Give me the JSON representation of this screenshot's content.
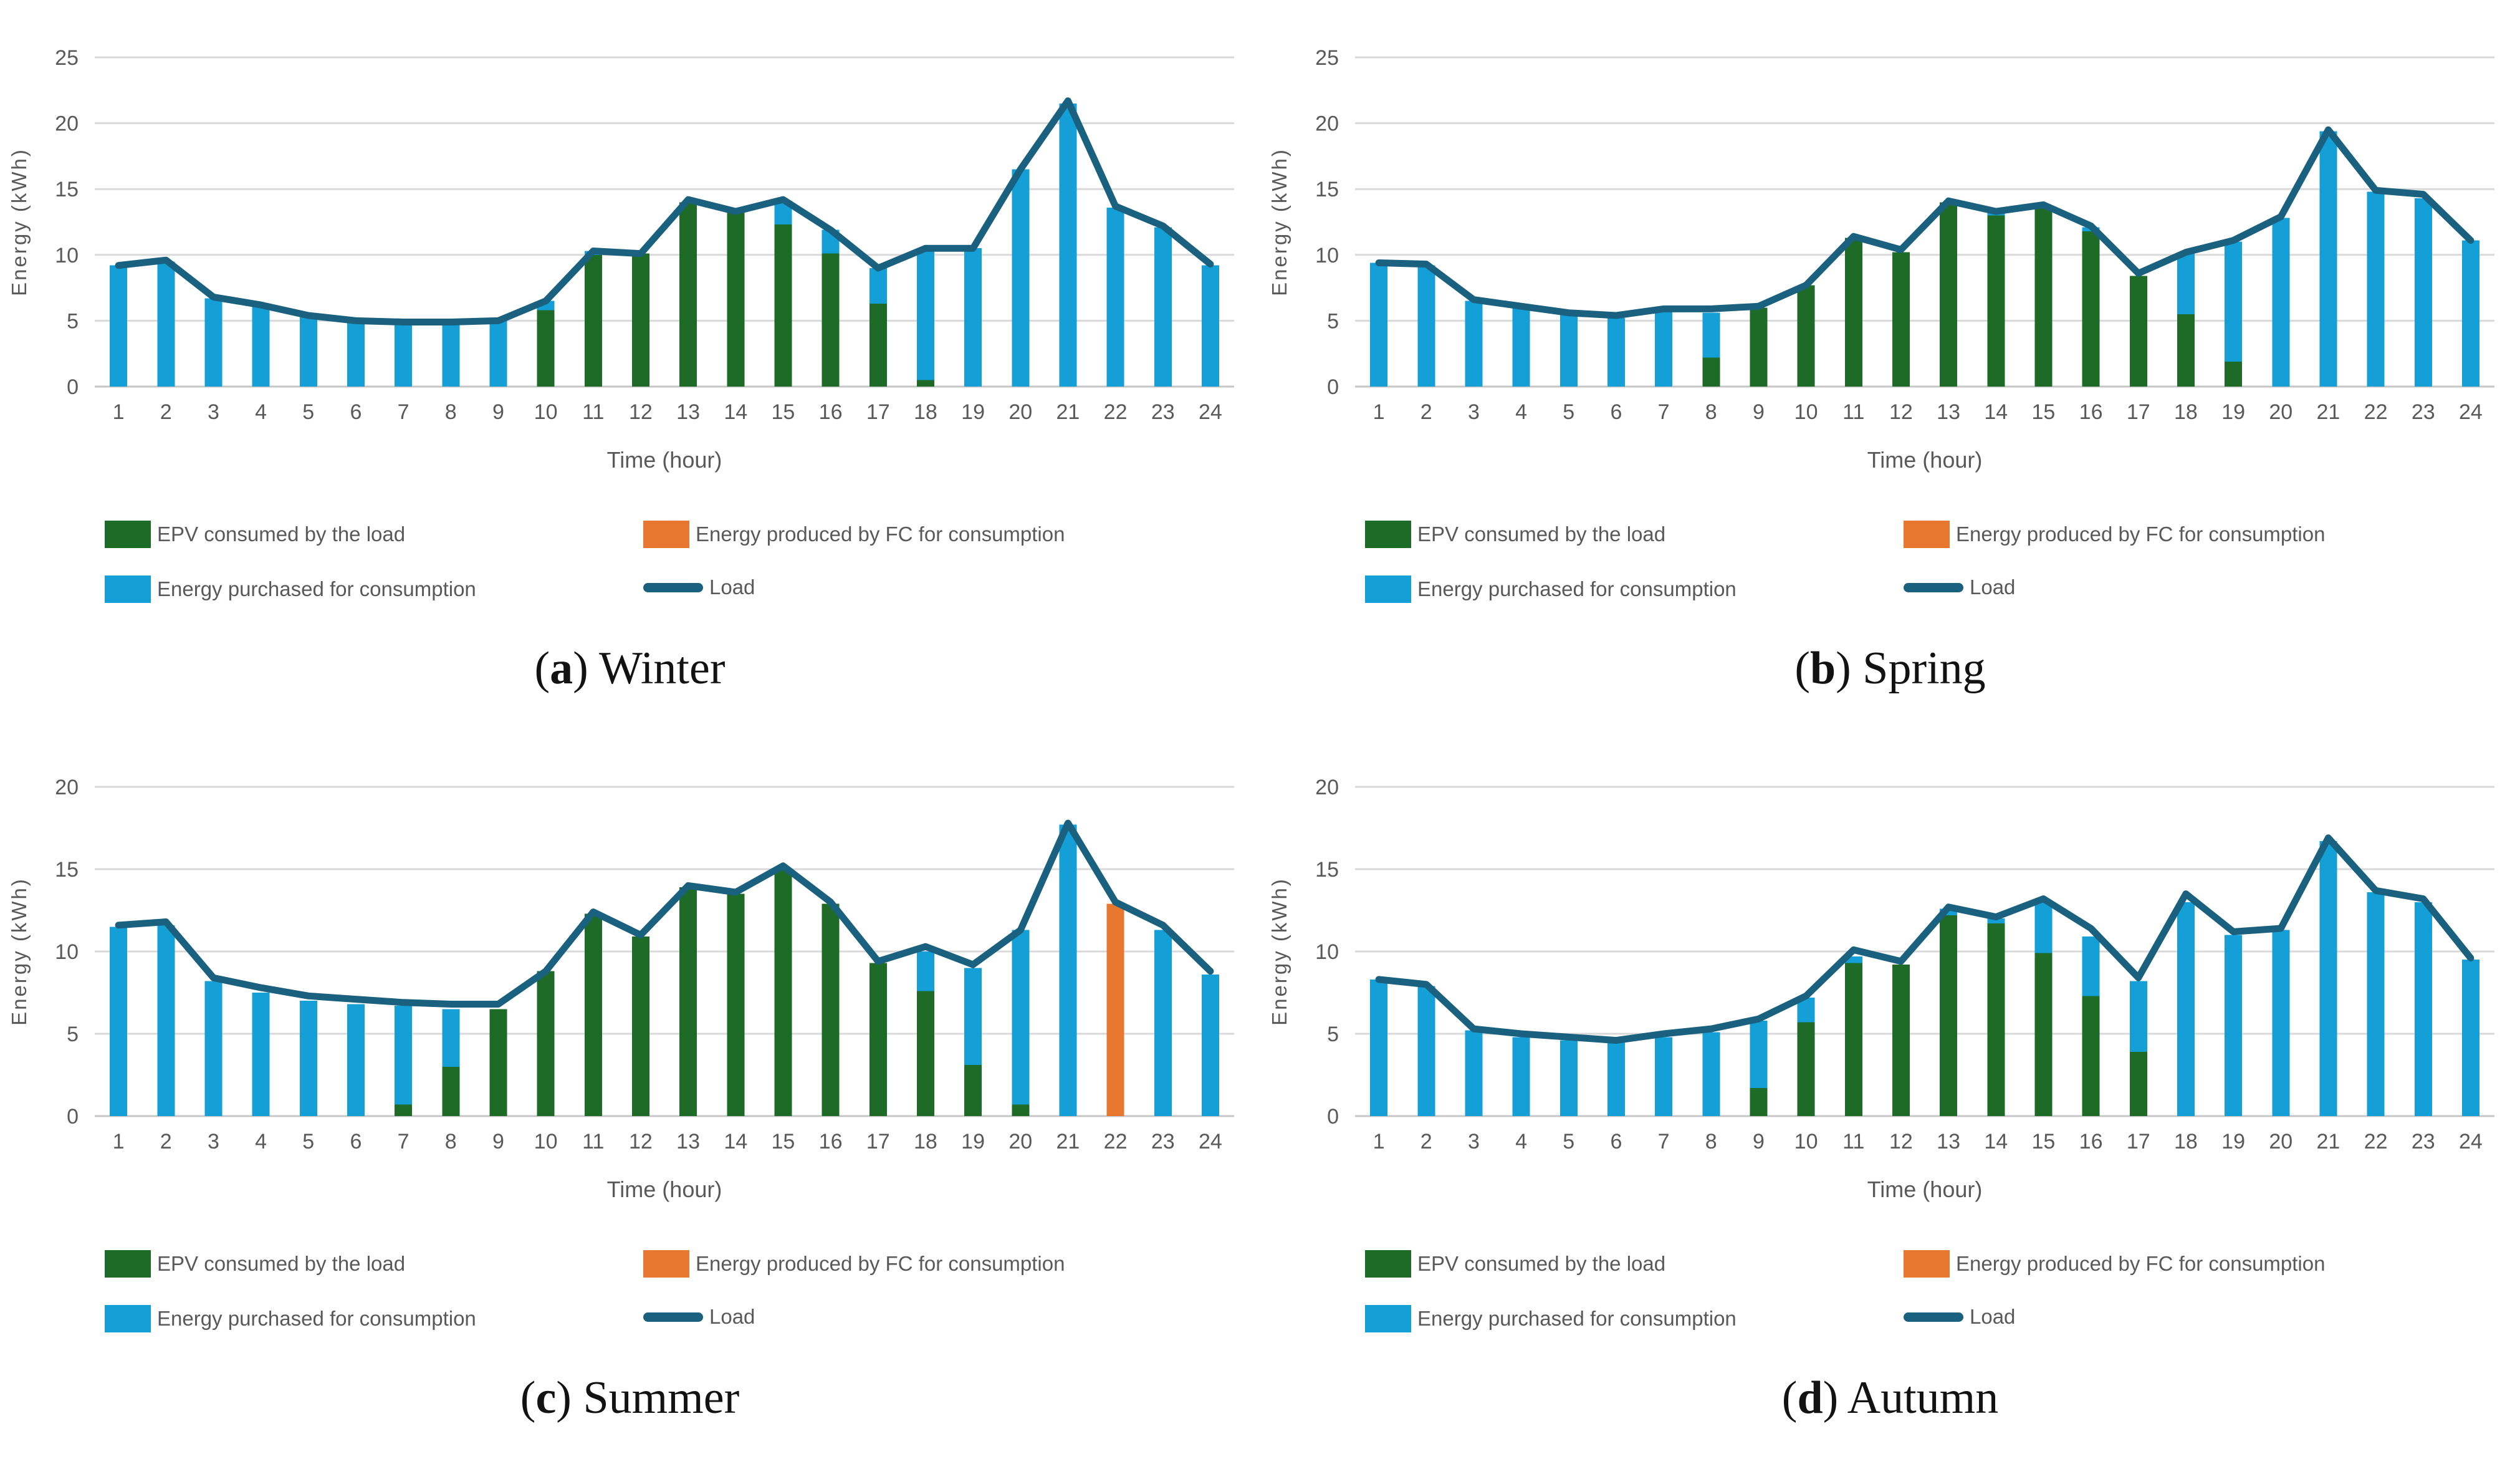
{
  "colors": {
    "epv": "#1D6B27",
    "fc": "#E8772F",
    "purchased": "#149FD6",
    "load": "#1A607F",
    "grid": "#D9D9D9",
    "zero_axis": "#C6C6C6",
    "tick_text": "#595959",
    "caption_text": "#121212"
  },
  "axis": {
    "x_title": "Time (hour)",
    "y_title": "Energy (kWh)"
  },
  "legend": {
    "items": [
      {
        "key": "epv",
        "label": "EPV consumed by the load"
      },
      {
        "key": "fc",
        "label": "Energy produced by FC for consumption"
      },
      {
        "key": "purchased",
        "label": "Energy purchased for consumption"
      },
      {
        "key": "load",
        "label": "Load"
      }
    ]
  },
  "chart_data": [
    {
      "id": "a",
      "type": "bar",
      "subtype": "stacked-bars-with-line",
      "caption": {
        "open": "(",
        "letter": "a",
        "close": ") ",
        "season": "Winter"
      },
      "xlabel": "Time (hour)",
      "ylabel": "Energy (kWh)",
      "ylim": [
        0,
        25
      ],
      "yticks": [
        0,
        5,
        10,
        15,
        20,
        25
      ],
      "categories": [
        1,
        2,
        3,
        4,
        5,
        6,
        7,
        8,
        9,
        10,
        11,
        12,
        13,
        14,
        15,
        16,
        17,
        18,
        19,
        20,
        21,
        22,
        23,
        24
      ],
      "series": [
        {
          "name": "EPV consumed by the load",
          "key": "epv",
          "values": [
            0,
            0,
            0,
            0,
            0,
            0,
            0,
            0,
            0,
            5.8,
            10,
            10.1,
            14,
            13.2,
            12.3,
            10.1,
            6.3,
            0.5,
            0,
            0,
            0,
            0,
            0,
            0
          ]
        },
        {
          "name": "Energy produced by FC for consumption",
          "key": "fc",
          "values": [
            0,
            0,
            0,
            0,
            0,
            0,
            0,
            0,
            0,
            0,
            0,
            0,
            0,
            0,
            0,
            0,
            0,
            0,
            0,
            0,
            0,
            0,
            0,
            0
          ]
        },
        {
          "name": "Energy purchased for consumption",
          "key": "purchased",
          "values": [
            9.2,
            9.5,
            6.7,
            6.2,
            5.4,
            5,
            4.9,
            4.9,
            5,
            0.7,
            0.3,
            0,
            0,
            0,
            1.8,
            1.8,
            2.7,
            10,
            10.5,
            16.5,
            21.5,
            13.6,
            12.1,
            9.2
          ]
        }
      ],
      "line": {
        "name": "Load",
        "values": [
          9.2,
          9.6,
          6.8,
          6.2,
          5.4,
          5,
          4.9,
          4.9,
          5,
          6.5,
          10.3,
          10.1,
          14.2,
          13.3,
          14.2,
          11.9,
          9,
          10.5,
          10.5,
          16.5,
          21.7,
          13.7,
          12.2,
          9.3
        ]
      }
    },
    {
      "id": "b",
      "type": "bar",
      "subtype": "stacked-bars-with-line",
      "caption": {
        "open": "(",
        "letter": "b",
        "close": ") ",
        "season": "Spring"
      },
      "xlabel": "Time (hour)",
      "ylabel": "Energy (kWh)",
      "ylim": [
        0,
        25
      ],
      "yticks": [
        0,
        5,
        10,
        15,
        20,
        25
      ],
      "categories": [
        1,
        2,
        3,
        4,
        5,
        6,
        7,
        8,
        9,
        10,
        11,
        12,
        13,
        14,
        15,
        16,
        17,
        18,
        19,
        20,
        21,
        22,
        23,
        24
      ],
      "series": [
        {
          "name": "EPV consumed by the load",
          "key": "epv",
          "values": [
            0,
            0,
            0,
            0,
            0,
            0,
            0,
            2.2,
            6,
            7.7,
            11.3,
            10.2,
            14,
            13,
            13.7,
            11.8,
            8.4,
            5.5,
            1.9,
            0,
            0,
            0,
            0,
            0
          ]
        },
        {
          "name": "Energy produced by FC for consumption",
          "key": "fc",
          "values": [
            0,
            0,
            0,
            0,
            0,
            0,
            0,
            0,
            0,
            0,
            0,
            0,
            0,
            0,
            0,
            0,
            0,
            0,
            0,
            0,
            0,
            0,
            0,
            0
          ]
        },
        {
          "name": "Energy purchased for consumption",
          "key": "purchased",
          "values": [
            9.4,
            9.2,
            6.5,
            6,
            5.5,
            5.2,
            5.7,
            3.4,
            0,
            0,
            0,
            0,
            0,
            0.2,
            0,
            0.3,
            0,
            4.6,
            9.1,
            12.8,
            19.4,
            14.8,
            14.3,
            11.1
          ]
        }
      ],
      "line": {
        "name": "Load",
        "values": [
          9.4,
          9.3,
          6.6,
          6.1,
          5.6,
          5.4,
          5.9,
          5.9,
          6.1,
          7.7,
          11.4,
          10.4,
          14.1,
          13.3,
          13.8,
          12.2,
          8.6,
          10.2,
          11.1,
          12.9,
          19.5,
          14.9,
          14.6,
          11.1
        ]
      }
    },
    {
      "id": "c",
      "type": "bar",
      "subtype": "stacked-bars-with-line",
      "caption": {
        "open": "(",
        "letter": "c",
        "close": ") ",
        "season": "Summer"
      },
      "xlabel": "Time (hour)",
      "ylabel": "Energy (kWh)",
      "ylim": [
        0,
        20
      ],
      "yticks": [
        0,
        5,
        10,
        15,
        20
      ],
      "categories": [
        1,
        2,
        3,
        4,
        5,
        6,
        7,
        8,
        9,
        10,
        11,
        12,
        13,
        14,
        15,
        16,
        17,
        18,
        19,
        20,
        21,
        22,
        23,
        24
      ],
      "series": [
        {
          "name": "EPV consumed by the load",
          "key": "epv",
          "values": [
            0,
            0,
            0,
            0,
            0,
            0,
            0.7,
            3,
            6.5,
            8.8,
            12.3,
            10.9,
            13.9,
            13.5,
            15,
            12.9,
            9.3,
            7.6,
            3.1,
            0.7,
            0,
            0,
            0,
            0
          ]
        },
        {
          "name": "Energy produced by FC for consumption",
          "key": "fc",
          "values": [
            0,
            0,
            0,
            0,
            0,
            0,
            0,
            0,
            0,
            0,
            0,
            0,
            0,
            0,
            0,
            0,
            0,
            0,
            0,
            0,
            0,
            12.9,
            0,
            0
          ]
        },
        {
          "name": "Energy purchased for consumption",
          "key": "purchased",
          "values": [
            11.5,
            11.6,
            8.2,
            7.5,
            7,
            6.8,
            6,
            3.5,
            0,
            0,
            0,
            0,
            0,
            0,
            0,
            0,
            0,
            2.4,
            5.9,
            10.6,
            17.7,
            0,
            11.3,
            8.6
          ]
        }
      ],
      "line": {
        "name": "Load",
        "values": [
          11.6,
          11.8,
          8.4,
          7.8,
          7.3,
          7.1,
          6.9,
          6.8,
          6.8,
          8.8,
          12.4,
          11,
          14,
          13.6,
          15.2,
          13,
          9.4,
          10.3,
          9.2,
          11.3,
          17.8,
          13,
          11.6,
          8.8
        ]
      }
    },
    {
      "id": "d",
      "type": "bar",
      "subtype": "stacked-bars-with-line",
      "caption": {
        "open": "(",
        "letter": "d",
        "close": ") ",
        "season": "Autumn"
      },
      "xlabel": "Time (hour)",
      "ylabel": "Energy (kWh)",
      "ylim": [
        0,
        20
      ],
      "yticks": [
        0,
        5,
        10,
        15,
        20
      ],
      "categories": [
        1,
        2,
        3,
        4,
        5,
        6,
        7,
        8,
        9,
        10,
        11,
        12,
        13,
        14,
        15,
        16,
        17,
        18,
        19,
        20,
        21,
        22,
        23,
        24
      ],
      "series": [
        {
          "name": "EPV consumed by the load",
          "key": "epv",
          "values": [
            0,
            0,
            0,
            0,
            0,
            0,
            0,
            0,
            1.7,
            5.7,
            9.3,
            9.2,
            12.2,
            11.7,
            9.9,
            7.3,
            3.9,
            0,
            0,
            0,
            0,
            0,
            0,
            0
          ]
        },
        {
          "name": "Energy produced by FC for consumption",
          "key": "fc",
          "values": [
            0,
            0,
            0,
            0,
            0,
            0,
            0,
            0,
            0,
            0,
            0,
            0,
            0,
            0,
            0,
            0,
            0,
            0,
            0,
            0,
            0,
            0,
            0,
            0
          ]
        },
        {
          "name": "Energy purchased for consumption",
          "key": "purchased",
          "values": [
            8.3,
            7.9,
            5.2,
            4.8,
            4.6,
            4.5,
            4.8,
            5.1,
            4.1,
            1.5,
            0.4,
            0,
            0.4,
            0.3,
            3.2,
            3.6,
            4.3,
            13,
            11,
            11.3,
            16.7,
            13.6,
            13,
            9.5
          ]
        }
      ],
      "line": {
        "name": "Load",
        "values": [
          8.3,
          8,
          5.3,
          5,
          4.8,
          4.6,
          5,
          5.3,
          5.9,
          7.3,
          10.1,
          9.4,
          12.7,
          12.1,
          13.2,
          11.4,
          8.4,
          13.5,
          11.2,
          11.4,
          16.9,
          13.7,
          13.2,
          9.6
        ]
      }
    }
  ]
}
